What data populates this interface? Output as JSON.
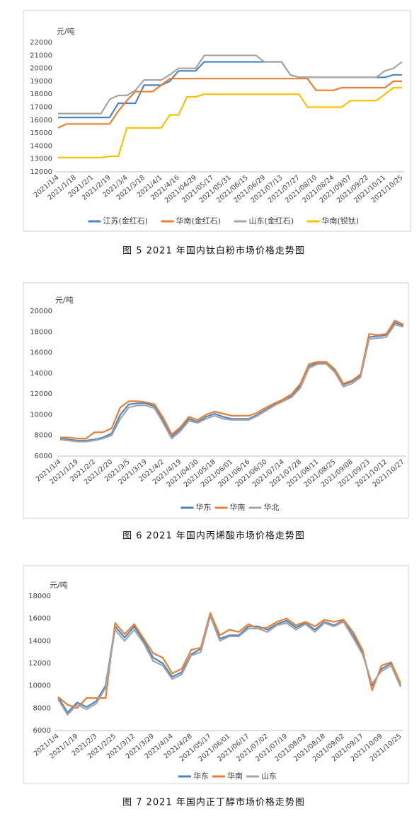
{
  "chart_data": [
    {
      "type": "line",
      "title": "图 5  2021 年国内钛白粉市场价格走势图",
      "y_label": "元/吨",
      "categories": [
        "2021/1/4",
        null,
        "2021/1/18",
        null,
        "2021/2/1",
        null,
        "2021/2/19",
        null,
        "2021/3/4",
        null,
        "2021/3/18",
        null,
        "2021/4/1",
        null,
        "2021/4/16",
        null,
        "2021/04/29",
        null,
        "2021/05/17",
        null,
        "2021/05/31",
        null,
        "2021/06/15",
        null,
        "2021/06/29",
        null,
        "2021/07/13",
        null,
        "2021/07/27",
        null,
        "2021/08/10",
        null,
        "2021/08/24",
        null,
        "2021/09/07",
        null,
        "2021/09/22",
        null,
        "2021/10/11",
        null,
        "2021/10/25"
      ],
      "series": [
        {
          "name": "江苏(金红石)",
          "color": "#4a86c5",
          "values": [
            16200,
            16200,
            16200,
            16200,
            16200,
            16200,
            16200,
            17300,
            17300,
            17300,
            18700,
            18700,
            18700,
            19000,
            19800,
            19800,
            19800,
            20500,
            20500,
            20500,
            20500,
            20500,
            20500,
            20500,
            20500,
            20500,
            20500,
            19500,
            19300,
            19300,
            19300,
            19300,
            19300,
            19300,
            19300,
            19300,
            19300,
            19300,
            19300,
            19500,
            19500
          ]
        },
        {
          "name": "华南(金红石)",
          "color": "#ed7d31",
          "values": [
            15400,
            15700,
            15700,
            15700,
            15700,
            15700,
            15700,
            16700,
            17500,
            18200,
            18200,
            18200,
            18700,
            19200,
            19200,
            19200,
            19200,
            19200,
            19200,
            19200,
            19200,
            19200,
            19200,
            19200,
            19200,
            19200,
            19200,
            19200,
            19200,
            19200,
            18300,
            18300,
            18300,
            18500,
            18500,
            18500,
            18500,
            18500,
            18500,
            19000,
            19000
          ]
        },
        {
          "name": "山东(金红石)",
          "color": "#a5a5a5",
          "values": [
            16500,
            16500,
            16500,
            16500,
            16500,
            16500,
            17600,
            17900,
            17900,
            18300,
            19100,
            19100,
            19100,
            19500,
            20000,
            20000,
            20000,
            21000,
            21000,
            21000,
            21000,
            21000,
            21000,
            21000,
            20500,
            20500,
            20500,
            19500,
            19300,
            19300,
            19300,
            19300,
            19300,
            19300,
            19300,
            19300,
            19300,
            19300,
            19800,
            20000,
            20500
          ]
        },
        {
          "name": "华南(锐钛)",
          "color": "#ffc000",
          "values": [
            13100,
            13100,
            13100,
            13100,
            13100,
            13100,
            13200,
            13200,
            15400,
            15400,
            15400,
            15400,
            15400,
            16400,
            16400,
            17800,
            17800,
            18000,
            18000,
            18000,
            18000,
            18000,
            18000,
            18000,
            18000,
            18000,
            18000,
            18000,
            18000,
            17000,
            17000,
            17000,
            17000,
            17000,
            17500,
            17500,
            17500,
            17500,
            18000,
            18500,
            18500
          ]
        }
      ],
      "ylim": [
        12000,
        22000
      ],
      "yticks": [
        12000,
        13000,
        14000,
        15000,
        16000,
        17000,
        18000,
        19000,
        20000,
        21000,
        22000
      ],
      "grid": false,
      "legend": "bottom"
    },
    {
      "type": "line",
      "title": "图 6  2021 年国内丙烯酸市场价格走势图",
      "y_label": "元/吨",
      "categories": [
        "2021/1/4",
        null,
        "2021/1/19",
        null,
        "2021/2/2",
        null,
        "2021/2/20",
        null,
        "2021/3/5",
        null,
        "2021/3/19",
        null,
        "2021/4/2",
        null,
        "2021/4/19",
        null,
        "2021/04/30",
        null,
        "2021/05/18",
        null,
        "2021/06/01",
        null,
        "2021/06/16",
        null,
        "2021/06/30",
        null,
        "2021/07/14",
        null,
        "2021/07/28",
        null,
        "2021/08/11",
        null,
        "2021/08/25",
        null,
        "2021/09/08",
        null,
        "2021/09/23",
        null,
        "2021/10/12",
        null,
        "2021/10/27"
      ],
      "series": [
        {
          "name": "华东",
          "color": "#4a86c5",
          "values": [
            7700,
            7600,
            7500,
            7500,
            7600,
            7800,
            8200,
            10000,
            11000,
            11100,
            11100,
            10800,
            9500,
            7900,
            8600,
            9600,
            9300,
            9800,
            10100,
            9800,
            9600,
            9600,
            9600,
            10000,
            10500,
            11000,
            11400,
            11800,
            12800,
            14700,
            15000,
            15000,
            14300,
            12900,
            13200,
            13800,
            17500,
            17600,
            17700,
            18900,
            18600
          ]
        },
        {
          "name": "华南",
          "color": "#ed7d31",
          "values": [
            7800,
            7800,
            7700,
            7700,
            8300,
            8300,
            8700,
            10700,
            11300,
            11300,
            11200,
            11000,
            9700,
            8100,
            8800,
            9800,
            9500,
            10000,
            10300,
            10100,
            9900,
            9900,
            9900,
            10200,
            10700,
            11100,
            11500,
            12000,
            13000,
            14900,
            15100,
            15100,
            14400,
            13000,
            13300,
            13900,
            17800,
            17700,
            17800,
            19100,
            18700
          ]
        },
        {
          "name": "华北",
          "color": "#a5a5a5",
          "values": [
            7600,
            7500,
            7400,
            7400,
            7500,
            7700,
            8000,
            9600,
            10700,
            10900,
            10900,
            10600,
            9200,
            7700,
            8400,
            9400,
            9200,
            9600,
            9900,
            9600,
            9500,
            9500,
            9500,
            9900,
            10400,
            10900,
            11300,
            11700,
            12600,
            14500,
            14900,
            14900,
            14100,
            12700,
            13000,
            13600,
            17300,
            17400,
            17500,
            18700,
            18500
          ]
        }
      ],
      "ylim": [
        6000,
        20000
      ],
      "yticks": [
        6000,
        8000,
        10000,
        12000,
        14000,
        16000,
        18000,
        20000
      ],
      "grid": false,
      "legend": "bottom"
    },
    {
      "type": "line",
      "title": "图 7  2021 年国内正丁醇市场价格走势图",
      "y_label": "元/吨",
      "categories": [
        "2021/1/4",
        null,
        "2021/1/19",
        null,
        "2021/2/3",
        null,
        "2021/2/25",
        null,
        "2021/3/12",
        null,
        "2021/3/29",
        null,
        "2021/4/14",
        null,
        "2021/4/28",
        null,
        "2021/05/17",
        null,
        "2021/06/01",
        null,
        "2021/06/17",
        null,
        "2021/07/02",
        null,
        "2021/07/19",
        null,
        "2021/08/03",
        null,
        "2021/08/18",
        null,
        "2021/09/02",
        null,
        "2021/09/17",
        null,
        "2021/10/09",
        null,
        "2021/10/25"
      ],
      "series": [
        {
          "name": "华东",
          "color": "#4a86c5",
          "values": [
            9000,
            7600,
            8500,
            8100,
            8600,
            10000,
            15300,
            14300,
            15300,
            14000,
            12500,
            12000,
            10800,
            11200,
            12800,
            13300,
            16300,
            14200,
            14500,
            14500,
            15300,
            15300,
            15000,
            15500,
            15800,
            15200,
            15600,
            15000,
            15700,
            15400,
            15800,
            14500,
            13000,
            10000,
            11500,
            12000,
            10000
          ]
        },
        {
          "name": "华南",
          "color": "#ed7d31",
          "values": [
            9000,
            8300,
            8000,
            8900,
            8900,
            8900,
            15600,
            14600,
            15500,
            14200,
            12900,
            12500,
            11100,
            11500,
            13200,
            13400,
            16500,
            14500,
            15000,
            14800,
            15500,
            15100,
            15200,
            15700,
            16000,
            15400,
            15700,
            15300,
            15900,
            15700,
            15900,
            14800,
            13200,
            9600,
            11800,
            12100,
            10200
          ]
        },
        {
          "name": "山东",
          "color": "#a5a5a5",
          "values": [
            8800,
            7400,
            8300,
            7900,
            8400,
            9800,
            15000,
            14000,
            15000,
            13800,
            12200,
            11800,
            10600,
            11000,
            12700,
            13000,
            16200,
            14000,
            14400,
            14400,
            15100,
            15100,
            14800,
            15400,
            15600,
            15000,
            15500,
            14800,
            15600,
            15300,
            15700,
            14300,
            12800,
            10200,
            11300,
            11800,
            9900
          ]
        }
      ],
      "ylim": [
        6000,
        18000
      ],
      "yticks": [
        6000,
        8000,
        10000,
        12000,
        14000,
        16000,
        18000
      ],
      "grid": false,
      "legend": "bottom"
    }
  ]
}
